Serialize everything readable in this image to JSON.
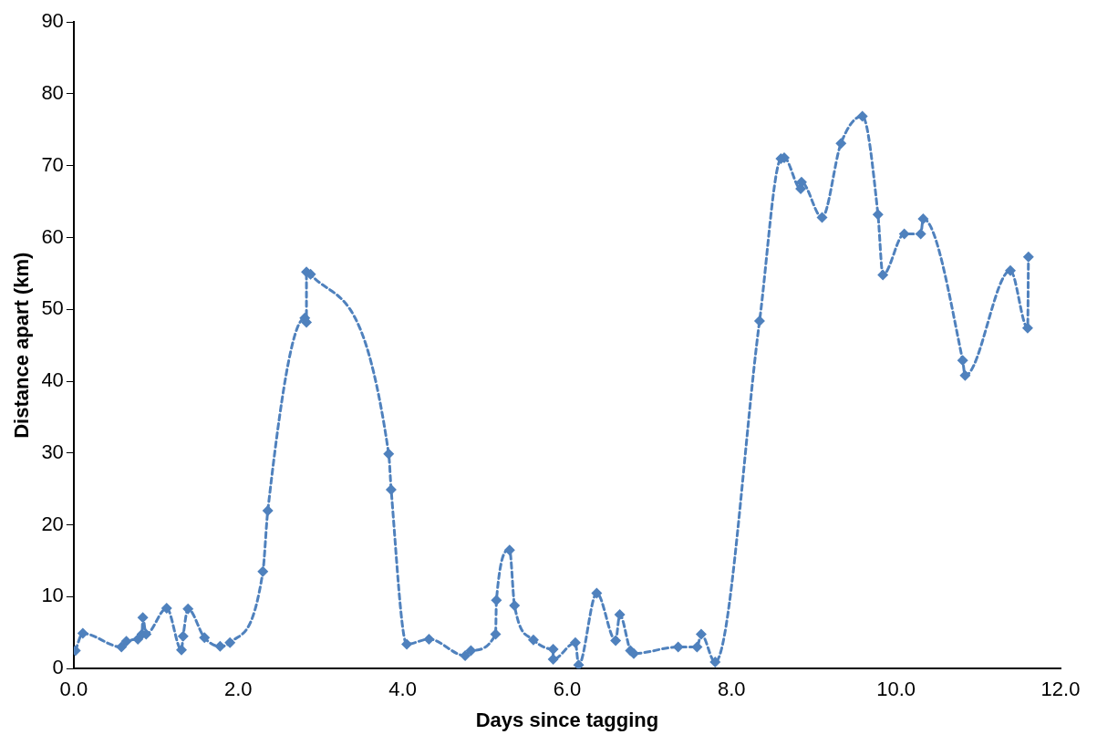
{
  "chart_data": {
    "type": "line",
    "xlabel": "Days since tagging",
    "ylabel": "Distance apart (km)",
    "x": [
      0.02,
      0.11,
      0.58,
      0.64,
      0.78,
      0.83,
      0.84,
      0.88,
      1.13,
      1.31,
      1.33,
      1.39,
      1.59,
      1.78,
      1.9,
      2.3,
      2.36,
      2.81,
      2.83,
      2.83,
      2.88,
      3.83,
      3.86,
      4.05,
      4.32,
      4.76,
      4.83,
      5.13,
      5.14,
      5.3,
      5.36,
      5.59,
      5.83,
      5.83,
      6.1,
      6.14,
      6.36,
      6.59,
      6.64,
      6.77,
      6.81,
      7.35,
      7.58,
      7.63,
      7.8,
      8.34,
      8.6,
      8.64,
      8.84,
      8.85,
      9.1,
      9.33,
      9.59,
      9.78,
      9.84,
      10.1,
      10.3,
      10.33,
      10.81,
      10.84,
      11.39,
      11.6,
      11.61
    ],
    "series": [
      {
        "color": "#4f81bd",
        "values": [
          2.5,
          4.9,
          3.0,
          3.8,
          4.1,
          4.8,
          7.1,
          4.8,
          8.4,
          2.6,
          4.5,
          8.3,
          4.3,
          3.1,
          3.6,
          13.5,
          22.0,
          48.8,
          48.2,
          55.2,
          54.9,
          29.9,
          24.9,
          3.4,
          4.1,
          1.8,
          2.5,
          4.8,
          9.5,
          16.5,
          8.8,
          4.0,
          2.7,
          1.3,
          3.6,
          0.5,
          10.5,
          3.9,
          7.5,
          2.5,
          2.1,
          3.0,
          3.0,
          4.8,
          0.9,
          48.4,
          71.0,
          71.1,
          66.8,
          67.7,
          62.8,
          73.1,
          76.9,
          63.2,
          54.8,
          60.5,
          60.5,
          62.6,
          42.9,
          40.8,
          55.4,
          47.4,
          57.3
        ]
      }
    ],
    "xlim": [
      0,
      12
    ],
    "xticks": [
      {
        "value": 0,
        "label": "0.0"
      },
      {
        "value": 2,
        "label": "2.0"
      },
      {
        "value": 4,
        "label": "4.0"
      },
      {
        "value": 6,
        "label": "6.0"
      },
      {
        "value": 8,
        "label": "8.0"
      },
      {
        "value": 10,
        "label": "10.0"
      },
      {
        "value": 12,
        "label": "12.0"
      }
    ],
    "ylim": [
      0,
      90
    ],
    "yticks": [
      0,
      10,
      20,
      30,
      40,
      50,
      60,
      70,
      80,
      90
    ],
    "grid": false,
    "legend": false,
    "marker": "diamond",
    "line_style": "dashed"
  }
}
